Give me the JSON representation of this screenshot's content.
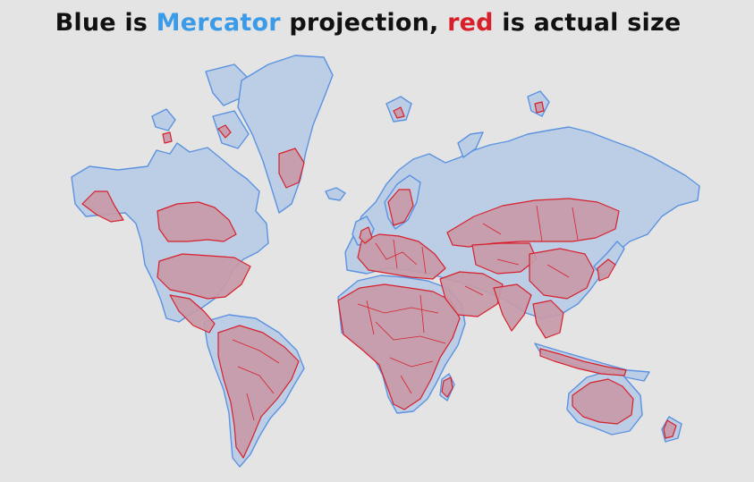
{
  "title": {
    "part1": "Blue is ",
    "mercator": "Mercator",
    "part2": " projection, ",
    "red": "red",
    "part3": " is actual size"
  },
  "colors": {
    "background": "#e4e4e4",
    "mercator_fill": "#bccde6",
    "mercator_stroke": "#5c93e0",
    "actual_fill": "#c79aa8",
    "actual_stroke": "#d8202b",
    "title_text": "#111111",
    "title_blue": "#3b9be8",
    "title_red": "#d8202b"
  }
}
